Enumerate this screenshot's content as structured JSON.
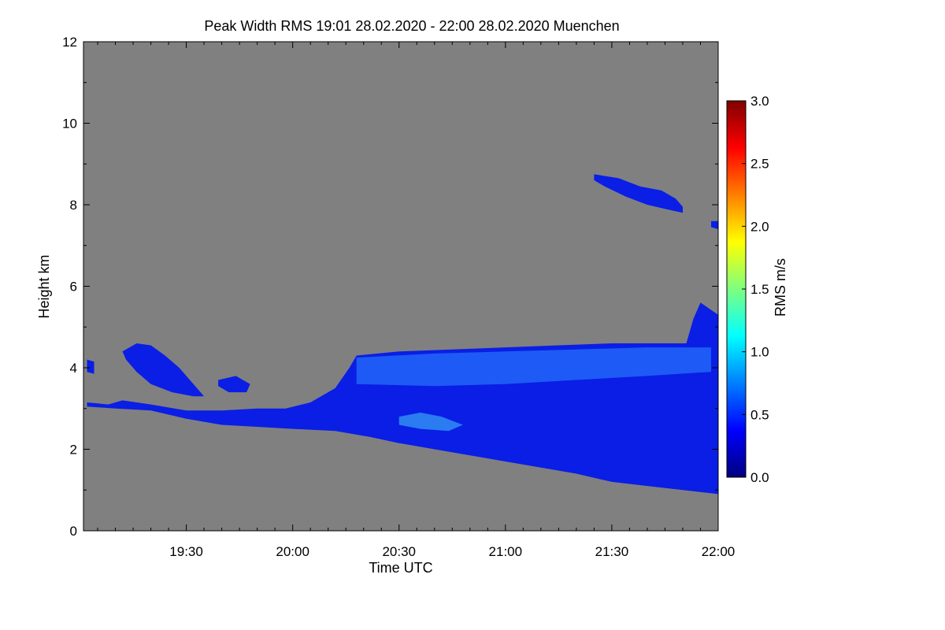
{
  "chart_data": {
    "type": "heatmap",
    "title": "Peak Width RMS   19:01 28.02.2020 - 22:00 28.02.2020 Muenchen",
    "xlabel": "Time UTC",
    "ylabel": "Height km",
    "x_range_min": [
      1141,
      1320
    ],
    "ylim": [
      0,
      12
    ],
    "x_ticks": [
      {
        "label": "19:30",
        "value": 1170
      },
      {
        "label": "20:00",
        "value": 1200
      },
      {
        "label": "20:30",
        "value": 1230
      },
      {
        "label": "21:00",
        "value": 1260
      },
      {
        "label": "21:30",
        "value": 1290
      },
      {
        "label": "22:00",
        "value": 1320
      }
    ],
    "y_ticks": [
      {
        "label": "0",
        "value": 0
      },
      {
        "label": "2",
        "value": 2
      },
      {
        "label": "4",
        "value": 4
      },
      {
        "label": "6",
        "value": 6
      },
      {
        "label": "8",
        "value": 8
      },
      {
        "label": "10",
        "value": 10
      },
      {
        "label": "12",
        "value": 12
      }
    ],
    "background_color": "#808080",
    "colorbar": {
      "label": "RMS m/s",
      "range": [
        0.0,
        3.0
      ],
      "ticks": [
        "0.0",
        "0.5",
        "1.0",
        "1.5",
        "2.0",
        "2.5",
        "3.0"
      ],
      "tick_values": [
        0.0,
        0.5,
        1.0,
        1.5,
        2.0,
        2.5,
        3.0
      ],
      "colormap": [
        "#00007f",
        "#0000ff",
        "#007fff",
        "#00ffff",
        "#7fff7f",
        "#ffff00",
        "#ff7f00",
        "#ff0000",
        "#7f0000"
      ]
    },
    "regions": [
      {
        "name": "main echo layer",
        "rms": 0.35,
        "color": "#0a1ee6",
        "top": [
          [
            1142,
            3.15
          ],
          [
            1148,
            3.1
          ],
          [
            1152,
            3.2
          ],
          [
            1160,
            3.1
          ],
          [
            1170,
            2.95
          ],
          [
            1180,
            2.95
          ],
          [
            1190,
            3.0
          ],
          [
            1198,
            3.0
          ],
          [
            1205,
            3.15
          ],
          [
            1212,
            3.5
          ],
          [
            1216,
            4.0
          ],
          [
            1218,
            4.3
          ],
          [
            1230,
            4.4
          ],
          [
            1245,
            4.45
          ],
          [
            1260,
            4.5
          ],
          [
            1275,
            4.55
          ],
          [
            1290,
            4.6
          ],
          [
            1305,
            4.6
          ],
          [
            1311,
            4.6
          ],
          [
            1313,
            5.2
          ],
          [
            1315,
            5.6
          ],
          [
            1320,
            5.3
          ]
        ],
        "bottom": [
          [
            1320,
            0.9
          ],
          [
            1310,
            1.0
          ],
          [
            1300,
            1.1
          ],
          [
            1290,
            1.2
          ],
          [
            1280,
            1.4
          ],
          [
            1270,
            1.55
          ],
          [
            1260,
            1.7
          ],
          [
            1250,
            1.85
          ],
          [
            1240,
            2.0
          ],
          [
            1230,
            2.15
          ],
          [
            1222,
            2.3
          ],
          [
            1212,
            2.45
          ],
          [
            1200,
            2.5
          ],
          [
            1190,
            2.55
          ],
          [
            1180,
            2.6
          ],
          [
            1170,
            2.75
          ],
          [
            1160,
            2.95
          ],
          [
            1150,
            3.0
          ],
          [
            1142,
            3.05
          ]
        ]
      },
      {
        "name": "enhanced band",
        "rms": 0.6,
        "color": "#1e5af5",
        "top": [
          [
            1218,
            4.25
          ],
          [
            1240,
            4.35
          ],
          [
            1260,
            4.4
          ],
          [
            1280,
            4.45
          ],
          [
            1300,
            4.5
          ],
          [
            1318,
            4.5
          ]
        ],
        "bottom": [
          [
            1318,
            3.9
          ],
          [
            1300,
            3.8
          ],
          [
            1280,
            3.7
          ],
          [
            1260,
            3.6
          ],
          [
            1240,
            3.55
          ],
          [
            1218,
            3.6
          ]
        ]
      },
      {
        "name": "mid-level patch",
        "rms": 0.7,
        "color": "#2a7cf0",
        "top": [
          [
            1230,
            2.8
          ],
          [
            1236,
            2.9
          ],
          [
            1242,
            2.8
          ],
          [
            1248,
            2.6
          ],
          [
            1244,
            2.45
          ],
          [
            1236,
            2.5
          ]
        ],
        "bottom": [
          [
            1236,
            2.5
          ],
          [
            1230,
            2.6
          ]
        ]
      },
      {
        "name": "upper cloud 1",
        "rms": 0.35,
        "color": "#0a1ee6",
        "top": [
          [
            1152,
            4.4
          ],
          [
            1156,
            4.6
          ],
          [
            1160,
            4.55
          ],
          [
            1164,
            4.3
          ],
          [
            1168,
            4.0
          ],
          [
            1172,
            3.6
          ],
          [
            1175,
            3.3
          ]
        ],
        "bottom": [
          [
            1172,
            3.3
          ],
          [
            1166,
            3.4
          ],
          [
            1160,
            3.6
          ],
          [
            1156,
            3.9
          ],
          [
            1153,
            4.2
          ]
        ]
      },
      {
        "name": "upper cloud 2",
        "rms": 0.35,
        "color": "#0a1ee6",
        "top": [
          [
            1179,
            3.7
          ],
          [
            1184,
            3.8
          ],
          [
            1188,
            3.6
          ]
        ],
        "bottom": [
          [
            1187,
            3.4
          ],
          [
            1182,
            3.4
          ],
          [
            1179,
            3.55
          ]
        ]
      },
      {
        "name": "upper cloud 3",
        "rms": 0.3,
        "color": "#0a1ee6",
        "top": [
          [
            1285,
            8.75
          ],
          [
            1292,
            8.65
          ],
          [
            1298,
            8.45
          ],
          [
            1304,
            8.35
          ],
          [
            1308,
            8.15
          ],
          [
            1310,
            7.95
          ]
        ],
        "bottom": [
          [
            1310,
            7.8
          ],
          [
            1305,
            7.9
          ],
          [
            1300,
            8.0
          ],
          [
            1294,
            8.2
          ],
          [
            1288,
            8.45
          ],
          [
            1285,
            8.6
          ]
        ]
      },
      {
        "name": "upper cloud 4",
        "rms": 0.3,
        "color": "#0a1ee6",
        "top": [
          [
            1318,
            7.6
          ],
          [
            1320,
            7.6
          ]
        ],
        "bottom": [
          [
            1320,
            7.4
          ],
          [
            1318,
            7.45
          ]
        ]
      },
      {
        "name": "early fragment",
        "rms": 0.3,
        "color": "#0a1ee6",
        "top": [
          [
            1142,
            4.2
          ],
          [
            1144,
            4.15
          ]
        ],
        "bottom": [
          [
            1144,
            3.85
          ],
          [
            1142,
            3.9
          ]
        ]
      }
    ]
  }
}
